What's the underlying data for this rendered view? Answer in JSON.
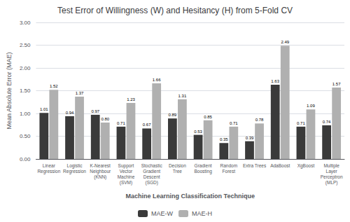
{
  "chart_data": {
    "type": "bar",
    "title": "Test Error of Willingness (W) and Hesitancy (H) from 5-Fold CV",
    "xlabel": "Machine Learning Classification Technique",
    "ylabel": "Mean Absolute Error (MAE)",
    "categories": [
      "Linear\nRegression",
      "Logistic\nRegression",
      "K-Nearest\nNeighbour\n(KNN)",
      "Support\nVector\nMachine\n(SVM)",
      "Stochastic\nGradient\nDescent\n(SGD)",
      "Decision\nTree",
      "Gradient\nBoosting",
      "Random\nForest",
      "Extra Trees",
      "AdaBoost",
      "XgBoost",
      "Multiple\nLayer\nPerceptron\n(MLP)"
    ],
    "series": [
      {
        "name": "MAE-W",
        "color": "#3a3a3a",
        "values": [
          1.01,
          0.94,
          0.97,
          0.71,
          0.67,
          0.89,
          0.53,
          0.35,
          0.39,
          1.63,
          0.71,
          0.74
        ],
        "value_labels": [
          "1.01",
          "0.94",
          "0.97",
          "0.71",
          "0.67",
          "0.89",
          "0.53",
          "0.35",
          "0.39",
          "1.63",
          "0.71",
          "0.74"
        ]
      },
      {
        "name": "MAE-H",
        "color": "#b0b0b0",
        "values": [
          1.52,
          1.37,
          0.8,
          1.23,
          1.66,
          1.31,
          0.85,
          0.71,
          0.78,
          2.49,
          1.09,
          1.57
        ],
        "value_labels": [
          "1.52",
          "1.37",
          "0.80",
          "1.23",
          "1.66",
          "1.31",
          "0.85",
          "0.71",
          "0.78",
          "2.49",
          "1.09",
          "1.57"
        ]
      }
    ],
    "ylim": [
      0,
      3.0
    ],
    "yticks": [
      {
        "value": 0,
        "label": "0.00"
      },
      {
        "value": 0.5,
        "label": "0.50"
      },
      {
        "value": 1,
        "label": "1.00"
      },
      {
        "value": 1.5,
        "label": "1.50"
      },
      {
        "value": 2,
        "label": "2.00"
      },
      {
        "value": 2.5,
        "label": "2.50"
      },
      {
        "value": 3,
        "label": "3.00"
      }
    ],
    "grid": true,
    "legend": "bottom",
    "data_labels": true
  }
}
